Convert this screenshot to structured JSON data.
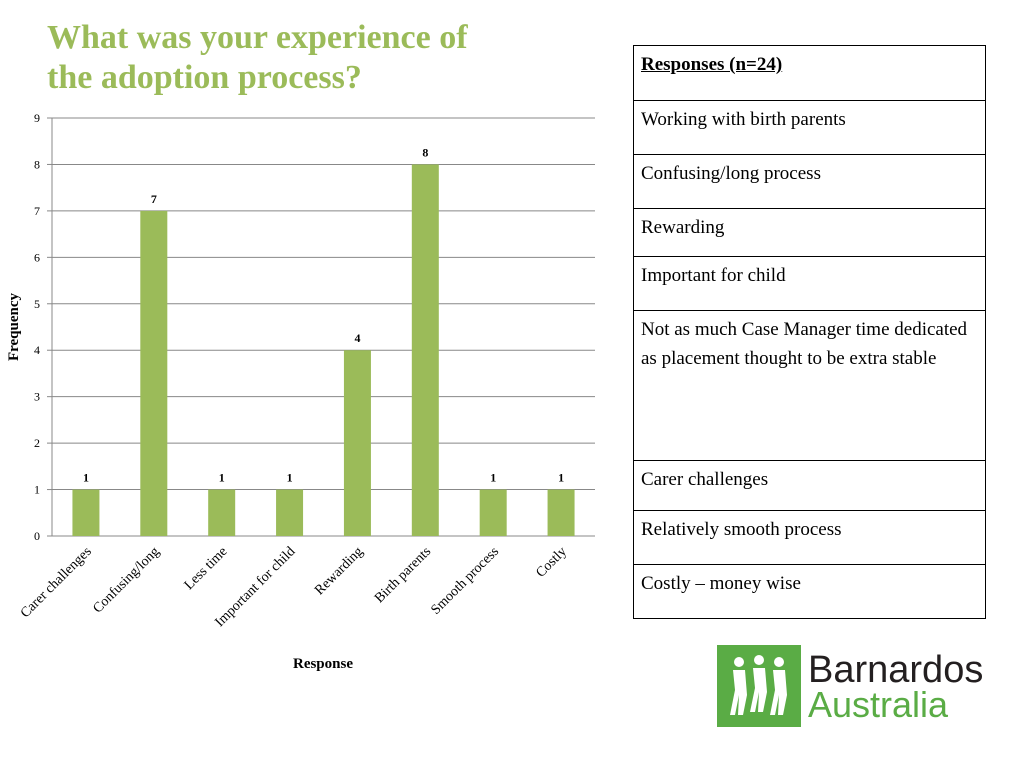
{
  "chart_data": {
    "type": "bar",
    "title": "What was your experience of the adoption process?",
    "x_label": "Response",
    "y_label": "Frequency",
    "categories": [
      "Carer challenges",
      "Confusing/long",
      "Less time",
      "Important for child",
      "Rewarding",
      "Birth parents",
      "Smooth process",
      "Costly"
    ],
    "values": [
      1,
      7,
      1,
      1,
      4,
      8,
      1,
      1
    ],
    "color": "#9bbb59",
    "ylim": [
      0,
      9
    ],
    "yticks": [
      0,
      1,
      2,
      3,
      4,
      5,
      6,
      7,
      8,
      9
    ],
    "grid": true
  },
  "table": {
    "header": "Responses (n=24)",
    "rows": [
      "Working with birth parents",
      "Confusing/long process",
      "Rewarding",
      "Important for child",
      "Not as much Case Manager time dedicated as placement thought to be extra stable",
      "Carer challenges",
      "Relatively smooth process",
      "Costly – money wise"
    ]
  },
  "logo": {
    "line1": "Barnardos",
    "line2": "Australia"
  }
}
